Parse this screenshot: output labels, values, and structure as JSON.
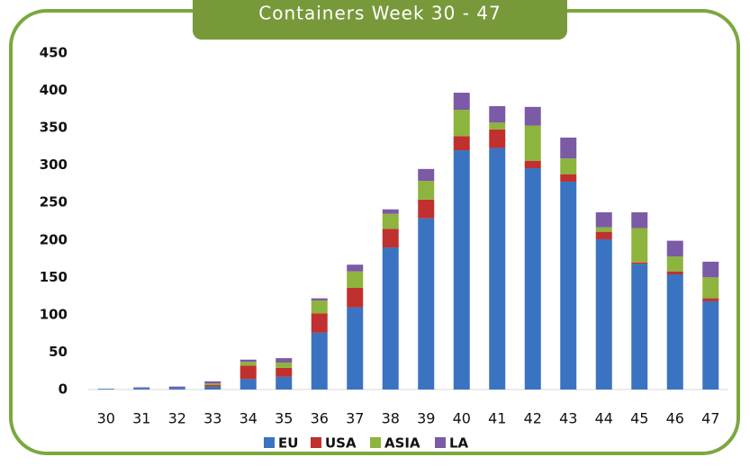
{
  "chart_data": {
    "type": "bar",
    "stacked": true,
    "title": "Containers Week 30 - 47",
    "categories": [
      "30",
      "31",
      "32",
      "33",
      "34",
      "35",
      "36",
      "37",
      "38",
      "39",
      "40",
      "41",
      "42",
      "43",
      "44",
      "45",
      "46",
      "47"
    ],
    "series": [
      {
        "name": "EU",
        "color": "#3a73c2",
        "values": [
          1,
          2,
          2,
          4,
          14,
          17,
          76,
          110,
          190,
          229,
          320,
          323,
          296,
          278,
          201,
          168,
          154,
          118
        ]
      },
      {
        "name": "USA",
        "color": "#c0302e",
        "values": [
          0,
          0,
          0,
          2,
          18,
          12,
          26,
          26,
          25,
          25,
          19,
          25,
          10,
          10,
          10,
          2,
          4,
          4
        ]
      },
      {
        "name": "ASIA",
        "color": "#8db43c",
        "values": [
          0,
          0,
          0,
          2,
          5,
          7,
          17,
          22,
          20,
          25,
          35,
          9,
          47,
          21,
          6,
          46,
          20,
          28
        ]
      },
      {
        "name": "LA",
        "color": "#7b5aa6",
        "values": [
          0,
          1,
          2,
          3,
          3,
          6,
          3,
          9,
          6,
          16,
          23,
          22,
          25,
          28,
          20,
          21,
          21,
          21
        ]
      }
    ],
    "ylim": [
      0,
      450
    ],
    "yticks": [
      0,
      50,
      100,
      150,
      200,
      250,
      300,
      350,
      400,
      450
    ],
    "grid": false,
    "legend": "bottom"
  }
}
